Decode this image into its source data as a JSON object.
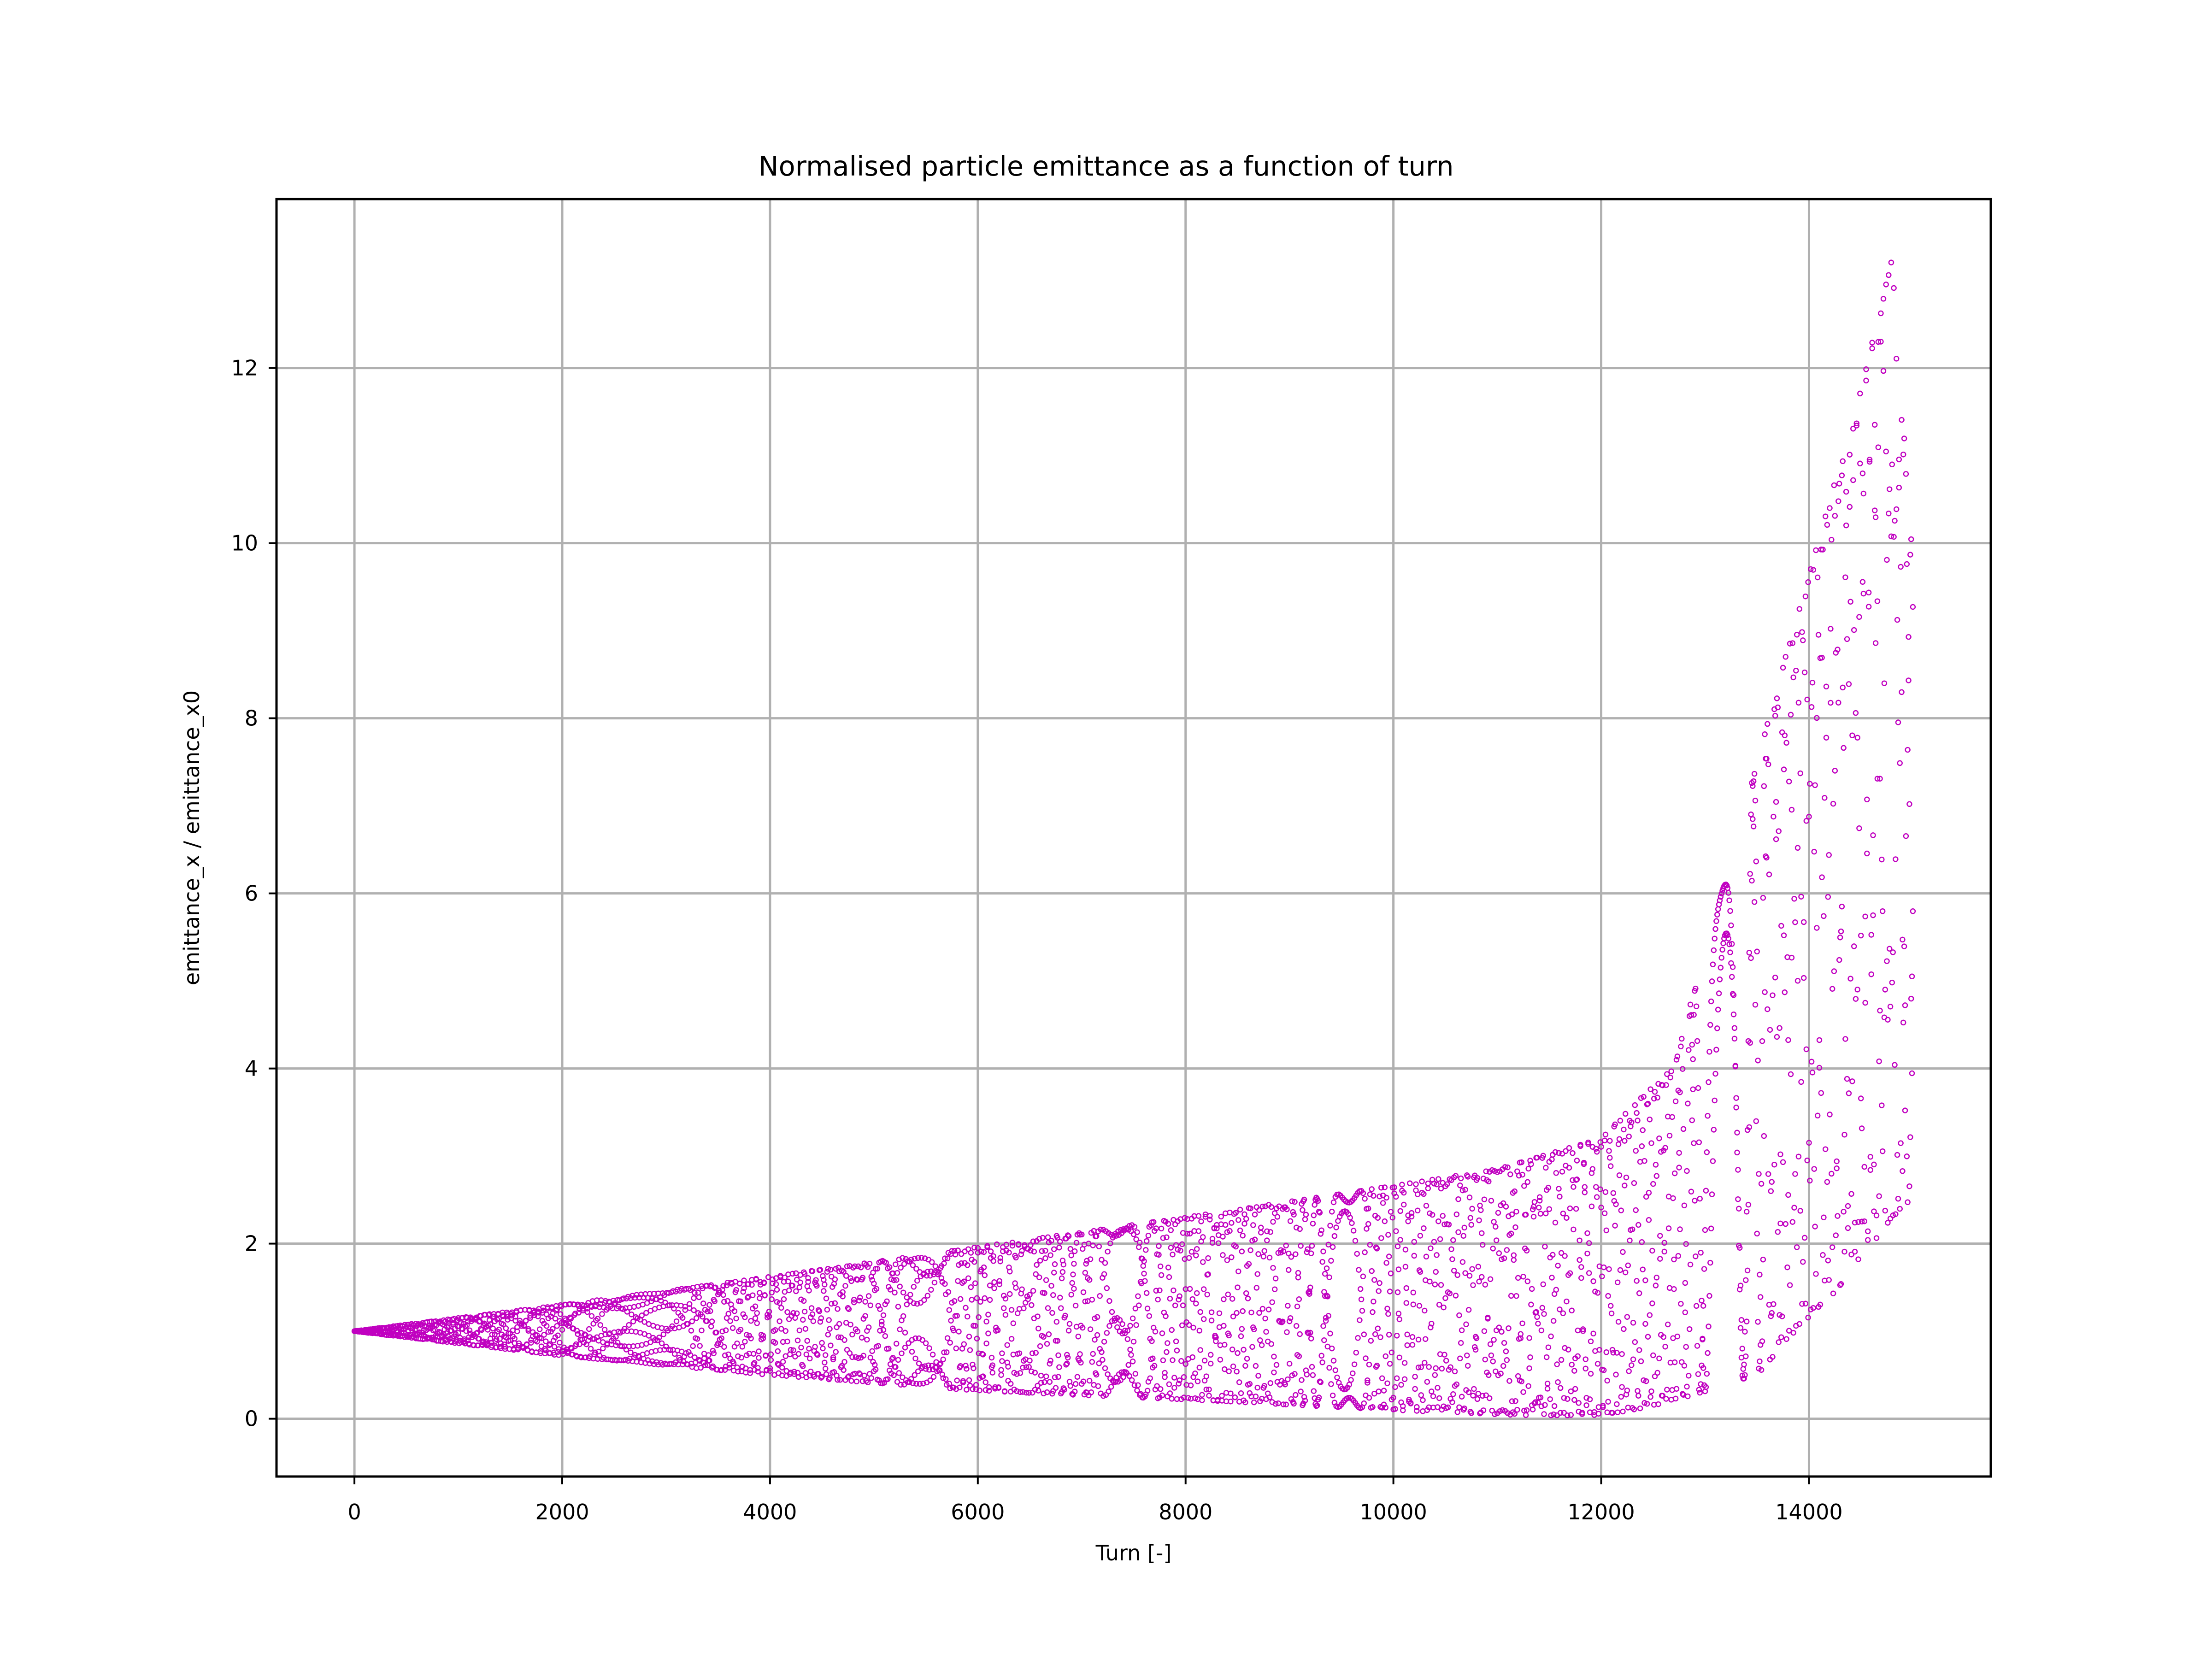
{
  "chart_data": {
    "type": "scatter",
    "title": "Normalised particle emittance as a function of turn",
    "xlabel": "Turn [-]",
    "ylabel": "emittance_x / emittance_x0",
    "xlim": [
      -750,
      15750
    ],
    "ylim": [
      -0.66,
      13.93
    ],
    "xticks": [
      0,
      2000,
      4000,
      6000,
      8000,
      10000,
      12000,
      14000
    ],
    "yticks": [
      0,
      2,
      4,
      6,
      8,
      10,
      12
    ],
    "grid": true,
    "legend": "none",
    "marker": "hollow circle",
    "color": "#c000c0",
    "grid_color": "#b0b0b0",
    "x_range": [
      0,
      15000
    ],
    "envelope": {
      "x": [
        0,
        2000,
        4000,
        6000,
        8000,
        10000,
        11000,
        12000,
        12700,
        13500,
        13900,
        14250,
        14550,
        14800,
        15000
      ],
      "upper": [
        1.0,
        1.3,
        1.62,
        1.96,
        2.3,
        2.66,
        2.85,
        3.2,
        4.05,
        7.5,
        9.25,
        10.7,
        12.0,
        13.25,
        9.8
      ],
      "lower": [
        1.0,
        0.72,
        0.5,
        0.32,
        0.22,
        0.1,
        0.05,
        0.02,
        0.2,
        0.5,
        1.05,
        1.45,
        1.9,
        2.3,
        2.5
      ]
    }
  }
}
